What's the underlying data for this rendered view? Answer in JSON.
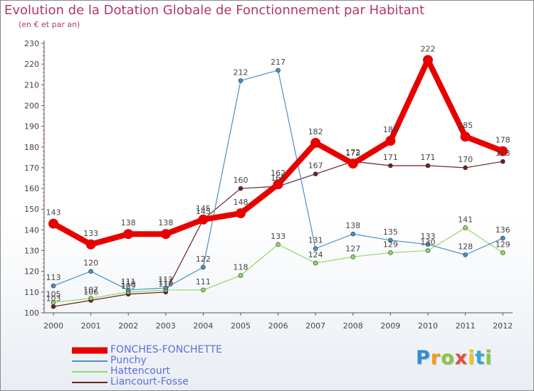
{
  "header": {
    "title": "Evolution de la Dotation Globale de Fonctionnement par Habitant",
    "subtitle": "(en € et par an)"
  },
  "chart_data": {
    "type": "line",
    "title": "Evolution de la Dotation Globale de Fonctionnement par Habitant",
    "subtitle": "(en € et par an)",
    "xlabel": "",
    "ylabel": "",
    "ylim": [
      100,
      230
    ],
    "y_ticks": [
      100,
      110,
      120,
      130,
      140,
      150,
      160,
      170,
      180,
      190,
      200,
      210,
      220,
      230
    ],
    "grid": false,
    "legend_position": "bottom-left",
    "categories": [
      "2000",
      "2001",
      "2002",
      "2003",
      "2004",
      "2005",
      "2006",
      "2007",
      "2008",
      "2009",
      "2010",
      "2011",
      "2012"
    ],
    "series": [
      {
        "name": "FONCHES-FONCHETTE",
        "color": "#e80000",
        "values": [
          143,
          133,
          138,
          138,
          145,
          148,
          162,
          182,
          172,
          183,
          222,
          185,
          178
        ]
      },
      {
        "name": "Punchy",
        "color": "#4a8fc8",
        "values": [
          113,
          120,
          111,
          112,
          122,
          212,
          217,
          131,
          138,
          135,
          133,
          128,
          136
        ]
      },
      {
        "name": "Hattencourt",
        "color": "#90d860",
        "values": [
          105,
          107,
          110,
          111,
          111,
          118,
          133,
          124,
          127,
          129,
          130,
          141,
          129
        ]
      },
      {
        "name": "Liancourt-Fosse",
        "color": "#6b2222",
        "values": [
          103,
          106,
          109,
          110,
          145,
          160,
          161,
          167,
          173,
          171,
          171,
          170,
          173
        ]
      }
    ]
  },
  "brand": {
    "letters": [
      "P",
      "r",
      "o",
      "x",
      "i",
      "t",
      "i"
    ],
    "colors": [
      "#2f8fd8",
      "#f39a1e",
      "#88c540",
      "#e74c3c",
      "#f1c40f",
      "#3aa1d8",
      "#88c540"
    ]
  }
}
